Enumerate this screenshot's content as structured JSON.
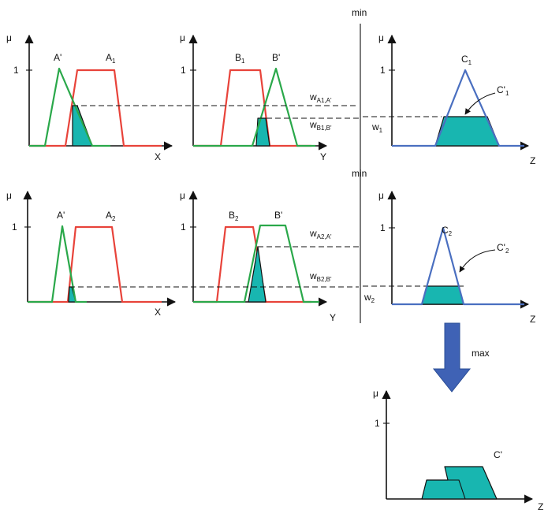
{
  "labels": {
    "mu": "μ",
    "one": "1",
    "x": "X",
    "y": "Y",
    "z": "Z",
    "min": "min",
    "max": "max",
    "a_prime": "A'",
    "b_prime": "B'",
    "c_out": "C'",
    "a1": {
      "base": "A",
      "sub": "1"
    },
    "a2": {
      "base": "A",
      "sub": "2"
    },
    "b1": {
      "base": "B",
      "sub": "1"
    },
    "b2": {
      "base": "B",
      "sub": "2"
    },
    "c1": {
      "base": "C",
      "sub": "1"
    },
    "c2": {
      "base": "C",
      "sub": "2"
    },
    "c1p": {
      "base": "C'",
      "sub": "1"
    },
    "c2p": {
      "base": "C'",
      "sub": "2"
    },
    "w_a1": {
      "base": "w",
      "sub": "A1,A'"
    },
    "w_b1": {
      "base": "w",
      "sub": "B1,B'"
    },
    "w_a2": {
      "base": "w",
      "sub": "A2,A'"
    },
    "w_b2": {
      "base": "w",
      "sub": "B2,B'"
    },
    "w1": {
      "base": "w",
      "sub": "1"
    },
    "w2": {
      "base": "w",
      "sub": "2"
    }
  },
  "colors": {
    "set_a": "#e8433a",
    "input_prime": "#2aa84a",
    "set_c": "#4a6fc0",
    "fill": "#18b6b0",
    "arrow": "#3f62b5"
  }
}
